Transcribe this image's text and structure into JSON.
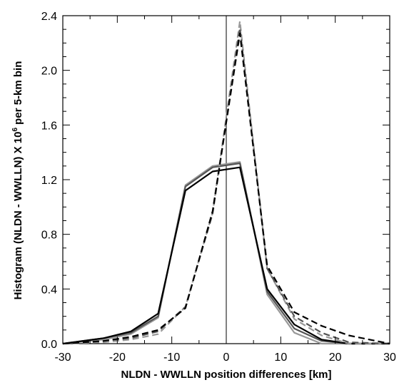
{
  "chart_data": {
    "type": "line",
    "xlabel": "NLDN - WWLLN position differences [km]",
    "ylabel_main": "Histogram (NLDN - WWLLN) X 10",
    "ylabel_sup": "6",
    "ylabel_tail": " per 5-km bin",
    "xlim": [
      -30,
      30
    ],
    "ylim": [
      0,
      2.4
    ],
    "x_ticks": [
      -30,
      -20,
      -10,
      0,
      10,
      20,
      30
    ],
    "x_tick_labels": [
      "-30",
      "-20",
      "-10",
      "0",
      "10",
      "20",
      "30"
    ],
    "y_ticks": [
      0,
      0.4,
      0.8,
      1.2,
      1.6,
      2.0,
      2.4
    ],
    "y_tick_labels": [
      "0.0",
      "0.4",
      "0.8",
      "1.2",
      "1.6",
      "2.0",
      "2.4"
    ],
    "grid": false,
    "legend": "none",
    "vertical_reference_x": 0,
    "series": [
      {
        "style": "solid",
        "color": "#999999",
        "x": [
          -30,
          -22.5,
          -17.5,
          -12.5,
          -7.5,
          -2.5,
          2.5,
          7.5,
          12.5,
          17.5,
          22.5,
          30
        ],
        "y": [
          0.0,
          0.03,
          0.07,
          0.19,
          1.16,
          1.3,
          1.33,
          0.36,
          0.08,
          0.0,
          0.0,
          0.0
        ]
      },
      {
        "style": "solid",
        "color": "#555555",
        "x": [
          -30,
          -22.5,
          -17.5,
          -12.5,
          -7.5,
          -2.5,
          2.5,
          7.5,
          12.5,
          17.5,
          22.5,
          30
        ],
        "y": [
          0.0,
          0.04,
          0.08,
          0.2,
          1.15,
          1.29,
          1.32,
          0.38,
          0.11,
          0.02,
          0.0,
          0.0
        ]
      },
      {
        "style": "solid",
        "color": "#000000",
        "x": [
          -30,
          -22.5,
          -17.5,
          -12.5,
          -7.5,
          -2.5,
          2.5,
          7.5,
          12.5,
          17.5,
          22.5,
          30
        ],
        "y": [
          0.0,
          0.04,
          0.09,
          0.22,
          1.12,
          1.26,
          1.29,
          0.4,
          0.14,
          0.03,
          0.0,
          0.0
        ]
      },
      {
        "style": "dashed",
        "color": "#999999",
        "x": [
          -30,
          -22.5,
          -17.5,
          -12.5,
          -7.5,
          -2.5,
          2.5,
          7.5,
          12.5,
          17.5,
          22.5,
          30
        ],
        "y": [
          0.0,
          0.01,
          0.03,
          0.07,
          0.27,
          0.96,
          2.36,
          0.55,
          0.18,
          0.06,
          0.0,
          0.0
        ]
      },
      {
        "style": "dashed",
        "color": "#555555",
        "x": [
          -30,
          -22.5,
          -17.5,
          -12.5,
          -7.5,
          -2.5,
          2.5,
          7.5,
          12.5,
          17.5,
          22.5,
          30
        ],
        "y": [
          0.0,
          0.02,
          0.04,
          0.09,
          0.27,
          0.95,
          2.31,
          0.55,
          0.2,
          0.08,
          0.01,
          0.0
        ]
      },
      {
        "style": "dashed",
        "color": "#000000",
        "x": [
          -30,
          -22.5,
          -17.5,
          -12.5,
          -7.5,
          -2.5,
          2.5,
          7.5,
          12.5,
          17.5,
          22.5,
          30
        ],
        "y": [
          0.0,
          0.02,
          0.05,
          0.1,
          0.26,
          0.97,
          2.27,
          0.57,
          0.23,
          0.13,
          0.06,
          0.0
        ]
      }
    ]
  }
}
